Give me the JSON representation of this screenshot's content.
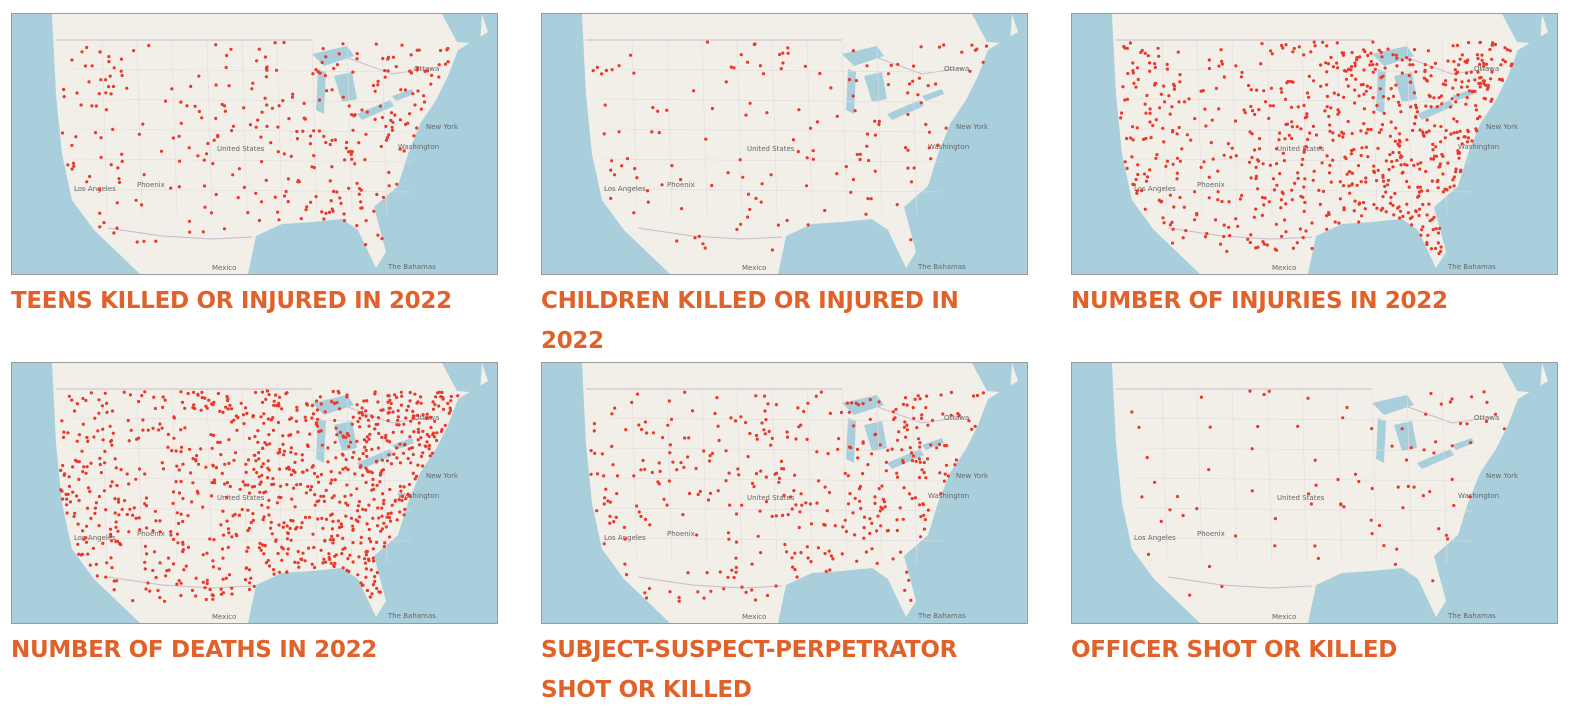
{
  "panels": [
    {
      "caption": "TEENS KILLED OR INJURED IN 2022"
    },
    {
      "caption": "CHILDREN KILLED OR INJURED IN 2022"
    },
    {
      "caption": "NUMBER OF INJURIES IN 2022"
    },
    {
      "caption": "NUMBER OF DEATHS IN 2022"
    },
    {
      "caption": "SUBJECT-SUSPECT-PERPETRATOR SHOT OR KILLED"
    },
    {
      "caption": "OFFICER SHOT OR KILLED"
    }
  ],
  "map_labels": [
    "Ottawa",
    "New York",
    "Washington",
    "United States",
    "Los Angeles",
    "Phoenix",
    "Mexico",
    "The Bahamas"
  ]
}
